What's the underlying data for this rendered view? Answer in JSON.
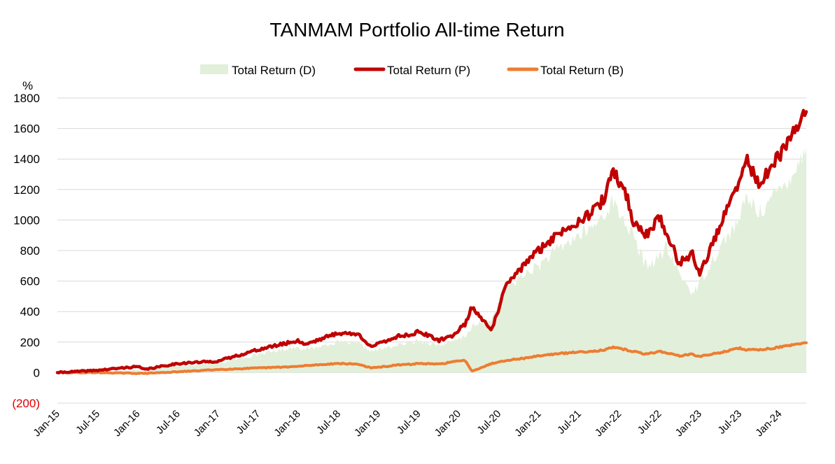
{
  "chart_data": {
    "type": "area",
    "title": "TANMAM Portfolio All-time Return",
    "xlabel": "",
    "ylabel": "%",
    "ylim": [
      -200,
      1800
    ],
    "yticks": [
      {
        "value": 1800,
        "label": "1800"
      },
      {
        "value": 1600,
        "label": "1600"
      },
      {
        "value": 1400,
        "label": "1400"
      },
      {
        "value": 1200,
        "label": "1200"
      },
      {
        "value": 1000,
        "label": "1000"
      },
      {
        "value": 800,
        "label": "800"
      },
      {
        "value": 600,
        "label": "600"
      },
      {
        "value": 400,
        "label": "400"
      },
      {
        "value": 200,
        "label": "200"
      },
      {
        "value": 0,
        "label": "0"
      },
      {
        "value": -200,
        "label": "(200)",
        "color": "#E00000"
      }
    ],
    "x_ticks": [
      "Jan-15",
      "Jul-15",
      "Jan-16",
      "Jul-16",
      "Jan-17",
      "Jul-17",
      "Jan-18",
      "Jul-18",
      "Jan-19",
      "Jul-19",
      "Jan-20",
      "Jul-20",
      "Jan-21",
      "Jul-21",
      "Jan-22",
      "Jul-22",
      "Jan-23",
      "Jul-23",
      "Jan-24"
    ],
    "grid": true,
    "legend_position": "top-center",
    "x": [
      "2015-01",
      "2015-07",
      "2016-01",
      "2016-02",
      "2016-07",
      "2017-01",
      "2017-07",
      "2018-01",
      "2018-02",
      "2018-07",
      "2018-10",
      "2018-12",
      "2019-04",
      "2019-06",
      "2019-07",
      "2019-10",
      "2019-12",
      "2020-02",
      "2020-03",
      "2020-06",
      "2020-08",
      "2020-11",
      "2021-01",
      "2021-03",
      "2021-07",
      "2021-09",
      "2021-11",
      "2021-12",
      "2022-02",
      "2022-03",
      "2022-05",
      "2022-07",
      "2022-08",
      "2022-10",
      "2022-12",
      "2023-01",
      "2023-04",
      "2023-07",
      "2023-08",
      "2023-10",
      "2023-12",
      "2024-02",
      "2024-04",
      "2024-05"
    ],
    "series": [
      {
        "name": "Total Return (D)",
        "kind": "area",
        "color": "#E2EFDA",
        "values": [
          0,
          10,
          15,
          10,
          45,
          60,
          120,
          170,
          150,
          200,
          190,
          140,
          180,
          200,
          210,
          180,
          200,
          240,
          300,
          350,
          550,
          650,
          700,
          780,
          900,
          950,
          1050,
          1120,
          980,
          900,
          700,
          750,
          820,
          650,
          520,
          580,
          820,
          1000,
          1150,
          1050,
          1150,
          1250,
          1380,
          1480
        ]
      },
      {
        "name": "Total Return (P)",
        "kind": "line",
        "color": "#C00000",
        "values": [
          0,
          15,
          40,
          20,
          60,
          75,
          150,
          210,
          185,
          260,
          250,
          170,
          240,
          250,
          270,
          210,
          240,
          320,
          430,
          280,
          560,
          720,
          800,
          880,
          1000,
          1050,
          1150,
          1330,
          1180,
          1000,
          900,
          1020,
          920,
          720,
          780,
          640,
          950,
          1250,
          1400,
          1230,
          1360,
          1480,
          1650,
          1710
        ]
      },
      {
        "name": "Total Return (B)",
        "kind": "line",
        "color": "#ED7D31",
        "values": [
          0,
          0,
          -5,
          -5,
          5,
          20,
          30,
          40,
          45,
          60,
          55,
          30,
          50,
          55,
          60,
          55,
          70,
          80,
          10,
          60,
          80,
          95,
          110,
          120,
          135,
          140,
          150,
          165,
          150,
          140,
          120,
          140,
          130,
          110,
          120,
          105,
          130,
          160,
          150,
          150,
          160,
          175,
          185,
          195
        ]
      }
    ]
  }
}
